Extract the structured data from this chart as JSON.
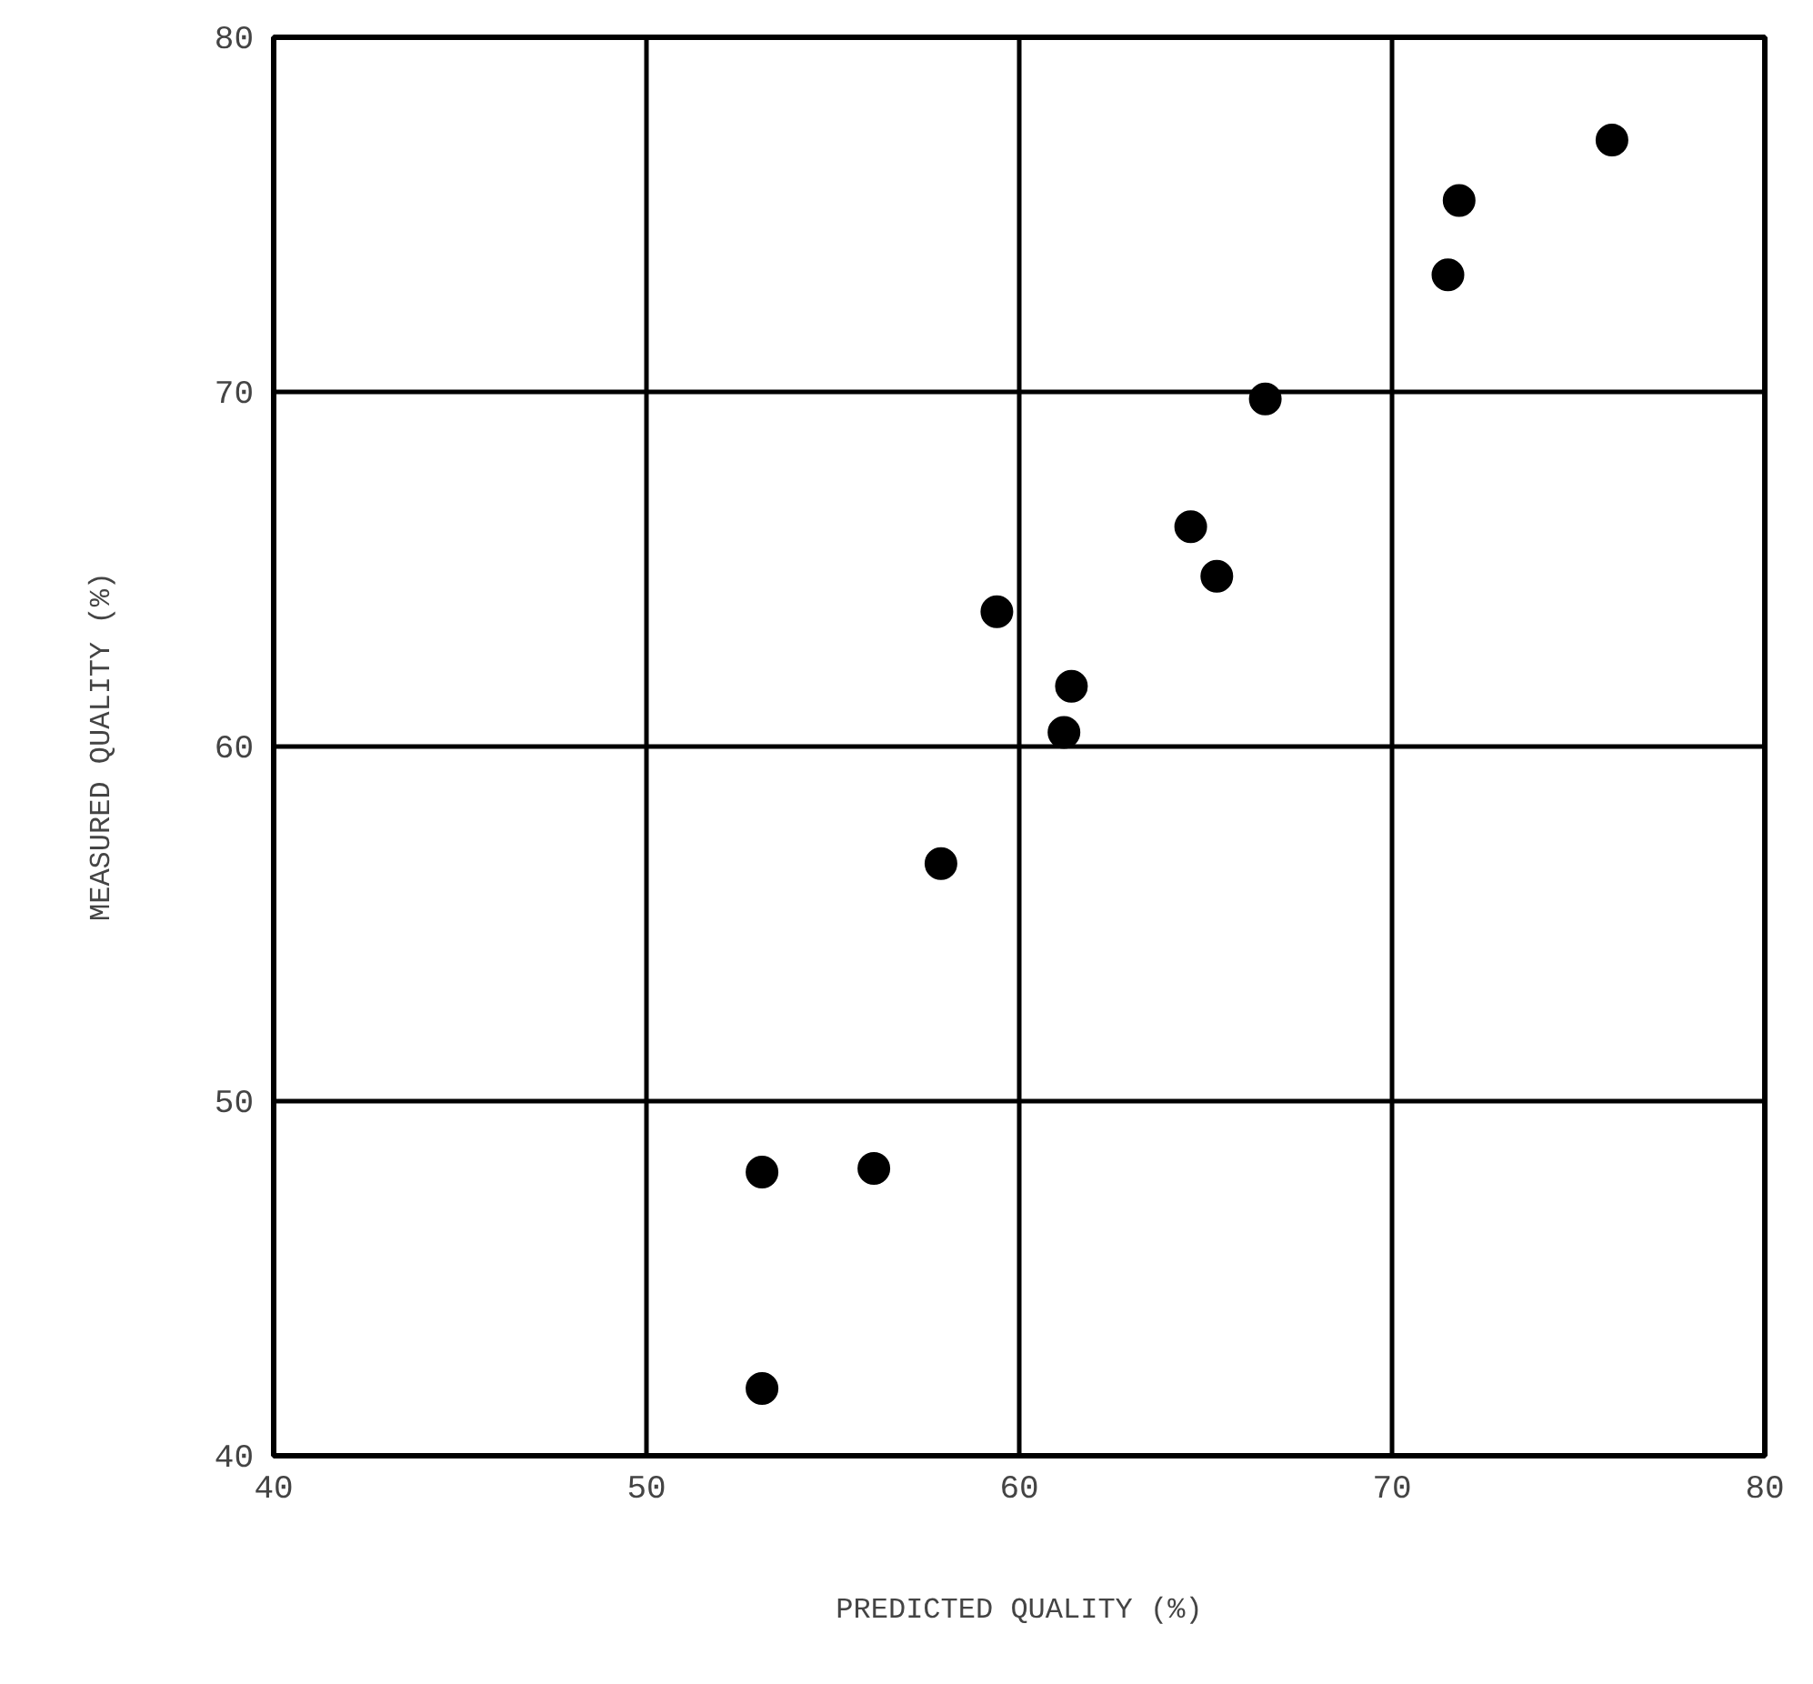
{
  "chart_data": {
    "type": "scatter",
    "xlabel": "PREDICTED QUALITY (%)",
    "ylabel": "MEASURED QUALITY (%)",
    "x": [
      53.1,
      56.1,
      53.1,
      57.9,
      59.4,
      61.4,
      61.2,
      64.6,
      65.3,
      66.6,
      71.5,
      71.8,
      75.9
    ],
    "series": [
      {
        "color": "#000000",
        "values": [
          48.0,
          48.1,
          41.9,
          56.7,
          63.8,
          61.7,
          60.4,
          66.2,
          64.8,
          69.8,
          73.3,
          75.4,
          77.1
        ]
      }
    ],
    "xlim": [
      40,
      80
    ],
    "ylim": [
      40,
      80
    ],
    "xticks": [
      40,
      50,
      60,
      70,
      80
    ],
    "yticks": [
      40,
      50,
      60,
      70,
      80
    ],
    "grid": true,
    "marker": "circle"
  }
}
